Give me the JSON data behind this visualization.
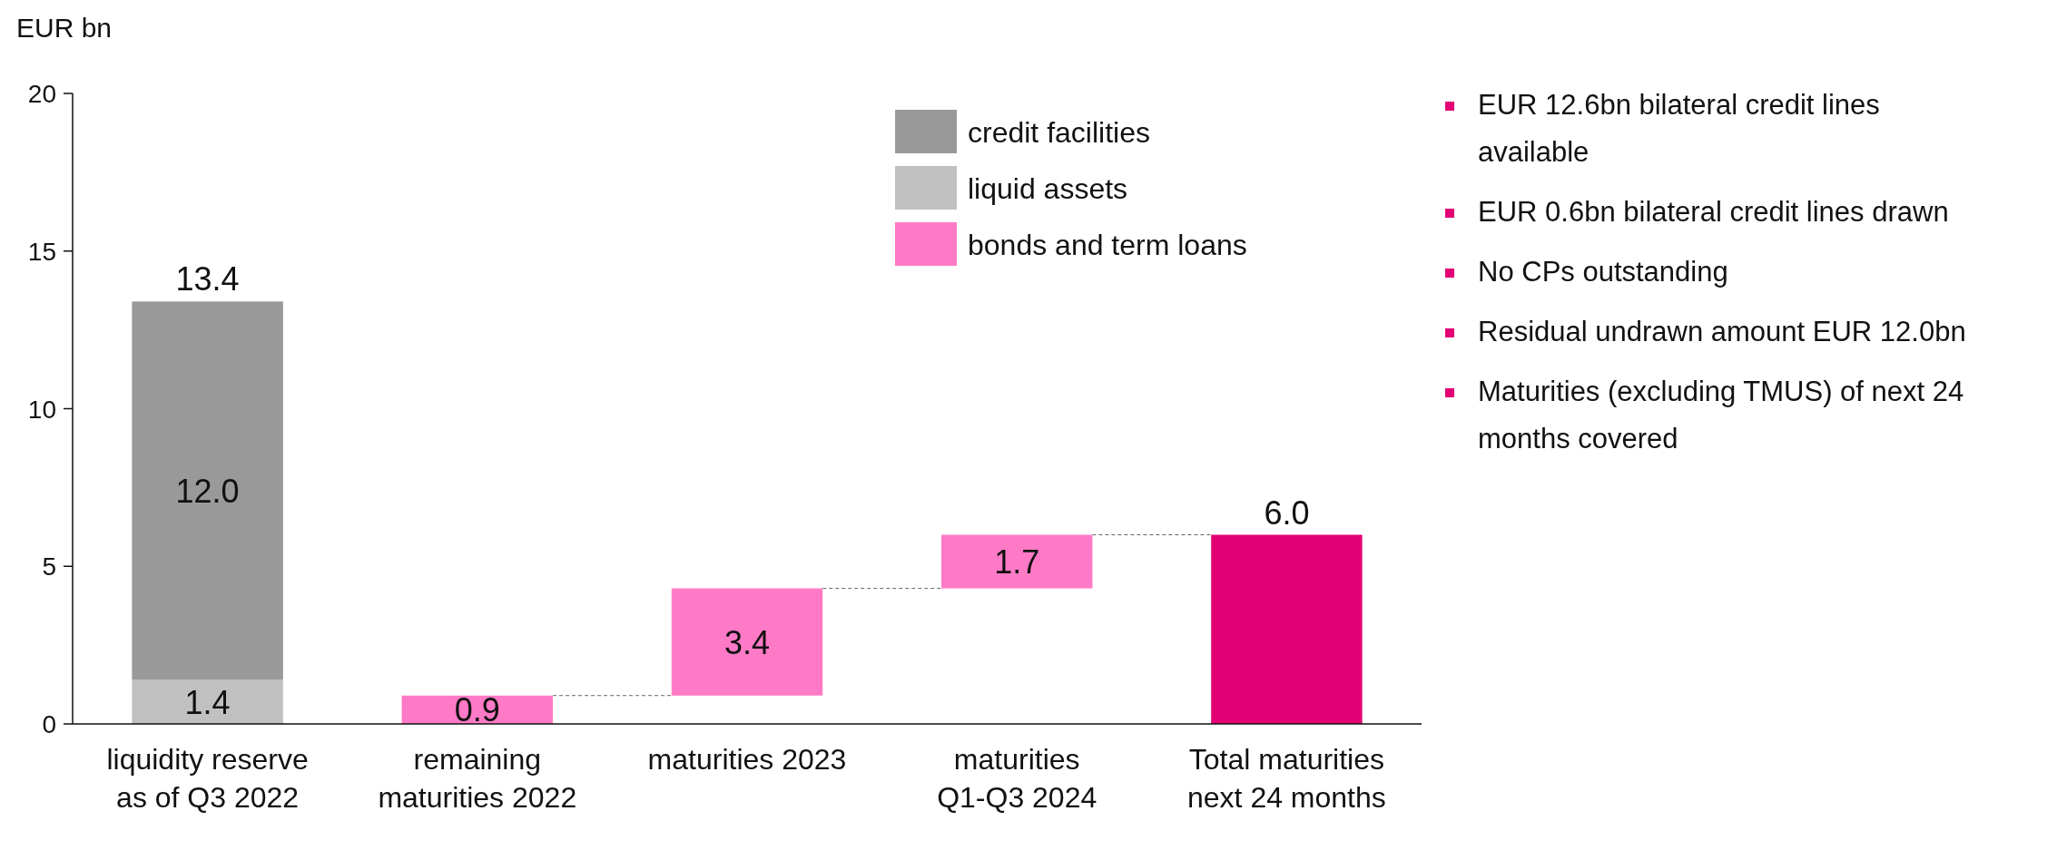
{
  "chart_data": {
    "type": "bar",
    "ylabel": "EUR bn",
    "categories": [
      "liquidity reserve as of Q3 2022",
      "remaining maturities 2022",
      "maturities 2023",
      "maturities Q1-Q3 2024",
      "Total maturities next 24 months"
    ],
    "stacked": true,
    "series": [
      {
        "name": "liquid assets",
        "color": "#c0c0c0",
        "values": [
          1.4,
          null,
          null,
          null,
          null
        ],
        "value_labels": [
          "1.4",
          null,
          null,
          null,
          null
        ]
      },
      {
        "name": "credit facilities",
        "color": "#999999",
        "values": [
          12.0,
          null,
          null,
          null,
          null
        ],
        "value_labels": [
          "12.0",
          null,
          null,
          null,
          null
        ]
      },
      {
        "name": "bonds and term loans",
        "color": "#ff7ac6",
        "values": [
          null,
          0.9,
          3.4,
          1.7,
          null
        ],
        "base": [
          null,
          0,
          0.9,
          4.3,
          null
        ],
        "value_labels": [
          null,
          "0.9",
          "3.4",
          "1.7",
          null
        ]
      },
      {
        "color": "#e20074",
        "values": [
          null,
          null,
          null,
          null,
          6.0
        ],
        "base": [
          null,
          null,
          null,
          null,
          0
        ]
      }
    ],
    "totals": [
      "13.4",
      null,
      null,
      null,
      "6.0"
    ],
    "ylim": [
      0,
      20
    ],
    "yticks": [
      0,
      5,
      10,
      15,
      20
    ],
    "grid": false,
    "legend": "top right",
    "annotations": [
      "EUR 12.6bn bilateral credit lines available",
      "EUR 0.6bn bilateral credit lines drawn",
      "No CPs outstanding",
      "Residual undrawn amount EUR 12.0bn",
      "Maturities (excluding TMUS) of next 24 months covered"
    ]
  }
}
